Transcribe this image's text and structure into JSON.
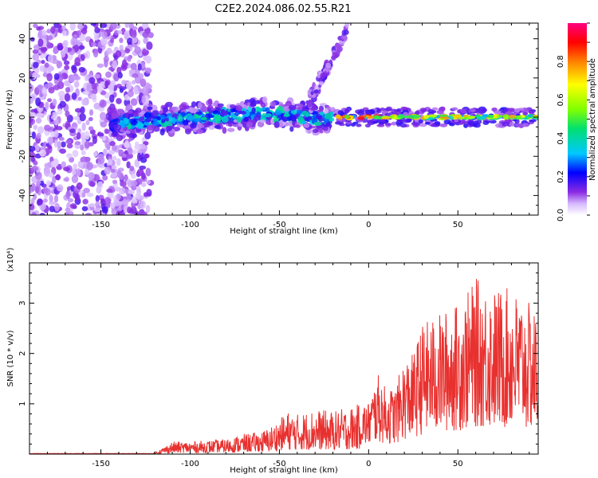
{
  "title": "C2E2.2024.086.02.55.R21",
  "chart_data": [
    {
      "type": "heatmap",
      "name": "spectrogram",
      "xlabel": "Height of straight line (km)",
      "ylabel": "Frequency (Hz)",
      "xlim": [
        -190,
        95
      ],
      "ylim": [
        -50,
        48
      ],
      "xticks": [
        -150,
        -100,
        -50,
        0,
        50
      ],
      "yticks": [
        -40,
        -20,
        0,
        20,
        40
      ],
      "colorbar": {
        "label": "Normalized spectral amplitude",
        "range": [
          0.0,
          1.0
        ],
        "ticks": [
          0.0,
          0.2,
          0.4,
          0.6,
          0.8
        ],
        "colors": [
          "#ffffff",
          "#d6b8ff",
          "#8a2be2",
          "#0000ff",
          "#00c8ff",
          "#00e070",
          "#80ff00",
          "#ffff00",
          "#ff8000",
          "#ff0000",
          "#ff0080"
        ]
      },
      "features": [
        {
          "label": "diffuse noise",
          "x_range": [
            -190,
            -122
          ],
          "freq_range": [
            -50,
            48
          ]
        },
        {
          "label": "main signal band",
          "x_range": [
            -145,
            -20
          ],
          "freq_center": -1,
          "freq_halfwidth": 6
        },
        {
          "label": "upward streak",
          "x_range": [
            -35,
            -12
          ],
          "freq_range": [
            5,
            45
          ]
        },
        {
          "label": "narrow carrier",
          "x_range": [
            -18,
            95
          ],
          "freq_center": 0,
          "freq_halfwidth": 2
        }
      ]
    },
    {
      "type": "line",
      "name": "snr",
      "xlabel": "Height of straight line (km)",
      "ylabel": "SNR (10 * v/v)",
      "y_multiplier": "(x10⁴)",
      "xlim": [
        -190,
        95
      ],
      "ylim": [
        0,
        3.8
      ],
      "xticks": [
        -150,
        -100,
        -50,
        0,
        50
      ],
      "yticks": [
        1,
        2,
        3
      ],
      "series": [
        {
          "name": "SNR",
          "color": "#e8312f",
          "envelope_x": [
            -190,
            -150,
            -120,
            -110,
            -100,
            -80,
            -70,
            -60,
            -55,
            -45,
            -40,
            -30,
            -20,
            -10,
            -5,
            0,
            5,
            10,
            15,
            20,
            25,
            30,
            40,
            50,
            55,
            60,
            70,
            80,
            90,
            95
          ],
          "envelope_ymax": [
            0.02,
            0.02,
            0.03,
            0.25,
            0.25,
            0.3,
            0.4,
            0.45,
            0.55,
            0.85,
            0.8,
            0.9,
            0.85,
            0.95,
            1.0,
            1.05,
            1.6,
            1.3,
            1.35,
            1.9,
            2.0,
            2.6,
            2.8,
            3.0,
            3.2,
            3.5,
            3.3,
            3.3,
            3.0,
            2.8
          ]
        }
      ]
    }
  ]
}
